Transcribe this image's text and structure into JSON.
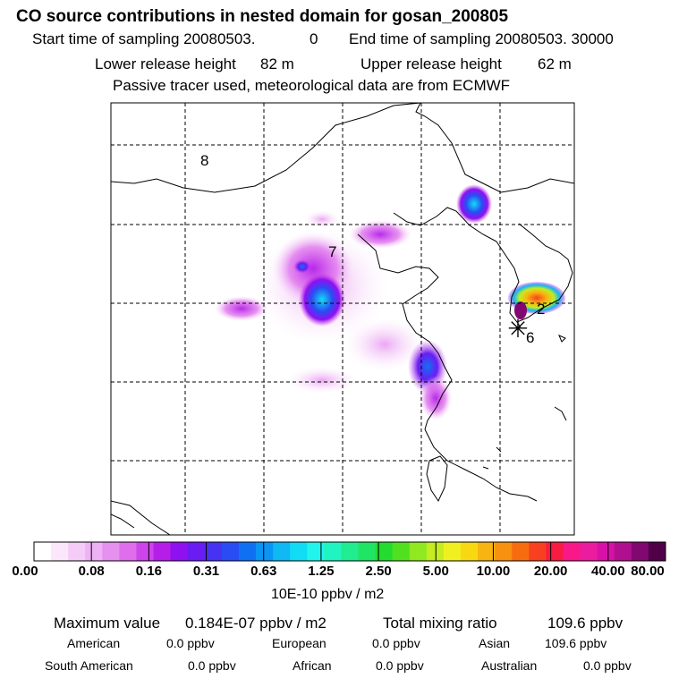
{
  "header": {
    "title": "CO  source contributions in nested domain for gosan_200805",
    "start_label": "Start time of sampling 20080503.",
    "start_hour": "0",
    "end_label": "End time of sampling 20080503. 30000",
    "lower_label": "Lower release height",
    "lower_value": "82 m",
    "upper_label": "Upper release height",
    "upper_value": "62 m",
    "tracer_note": "Passive tracer used, meteorological data are from ECMWF"
  },
  "map": {
    "region_labels": [
      "8",
      "7",
      "2",
      "6"
    ],
    "receptor_symbol": "✳"
  },
  "colorbar": {
    "ticks": [
      "0.00",
      "0.08",
      "0.16",
      "0.31",
      "0.63",
      "1.25",
      "2.50",
      "5.00",
      "10.00",
      "20.00",
      "40.00",
      "80.00"
    ],
    "unit": "10E-10 ppbv / m2",
    "colors": [
      "#ffffff",
      "#fbe6fb",
      "#f5ccf7",
      "#eeb2f4",
      "#e690f0",
      "#de6eec",
      "#cc44ea",
      "#b41ee8",
      "#8f10f0",
      "#6a1cf2",
      "#4632f2",
      "#2a4cf4",
      "#1070f4",
      "#0a94f4",
      "#10b8f4",
      "#10dcf4",
      "#20f4ec",
      "#20f4c0",
      "#20ec90",
      "#20e464",
      "#24dc30",
      "#50e020",
      "#90e820",
      "#c4ec20",
      "#f0f020",
      "#f8d810",
      "#f8b410",
      "#f89010",
      "#f86c10",
      "#f84020",
      "#f81c40",
      "#f81888",
      "#ec1ca0",
      "#d810a8",
      "#b01090",
      "#800870",
      "#500048"
    ]
  },
  "stats": {
    "max_label": "Maximum value",
    "max_value": "0.184E-07 ppbv / m2",
    "total_label": "Total mixing ratio",
    "total_value": "109.6 ppbv",
    "american_label": "American",
    "american_value": "0.0 ppbv",
    "european_label": "European",
    "european_value": "0.0 ppbv",
    "asian_label": "Asian",
    "asian_value": "109.6 ppbv",
    "south_american_label": "South American",
    "south_american_value": "0.0 ppbv",
    "african_label": "African",
    "african_value": "0.0 ppbv",
    "australian_label": "Australian",
    "australian_value": "0.0 ppbv"
  }
}
